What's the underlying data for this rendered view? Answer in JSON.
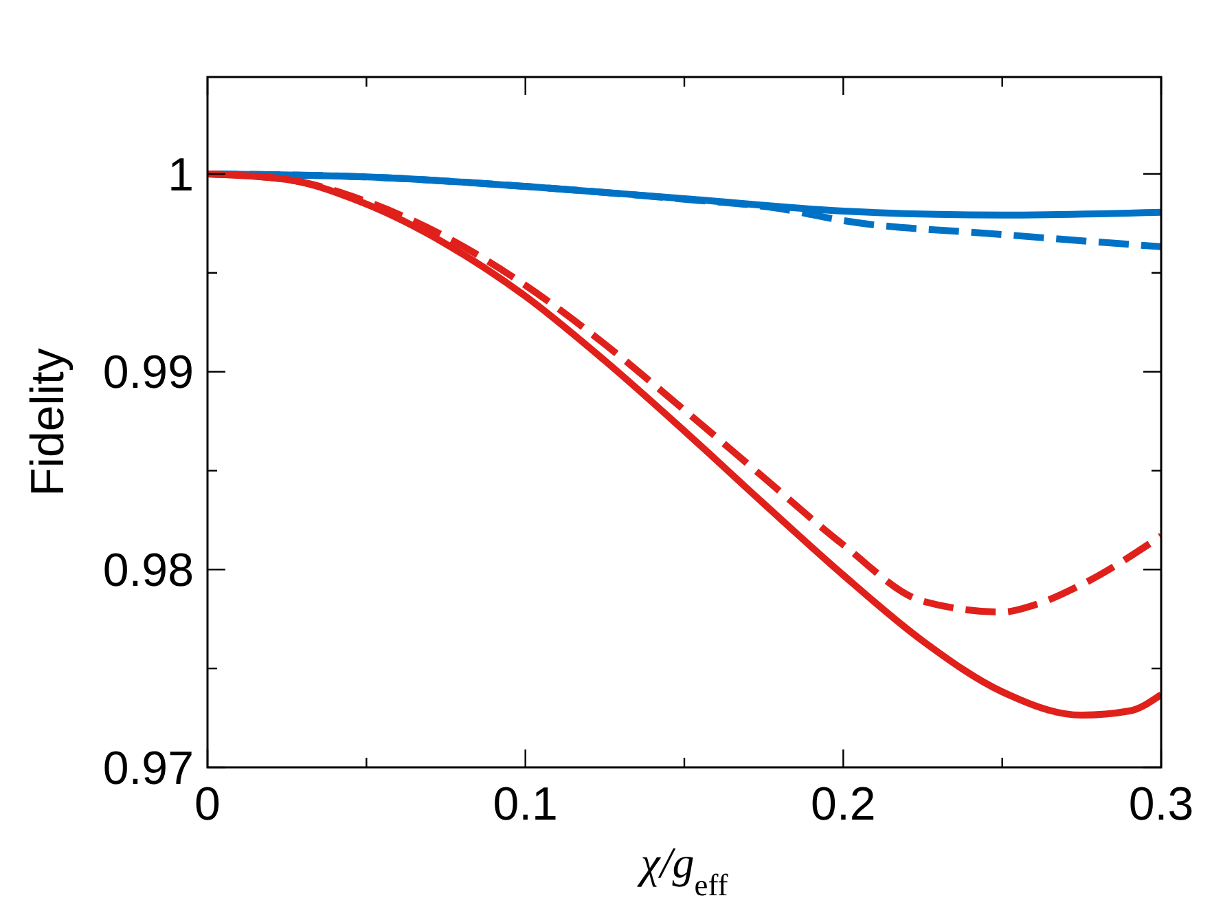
{
  "chart_data": {
    "type": "line",
    "xlabel": "χ/g$_{eff}$",
    "ylabel": "Fidelity",
    "xlim": [
      0,
      0.3
    ],
    "ylim": [
      0.97,
      1.0049
    ],
    "xticks": [
      0,
      {
        "value": 0.05,
        "label": null
      },
      0.1,
      {
        "value": 0.15,
        "label": null
      },
      0.2,
      {
        "value": 0.25,
        "label": null
      },
      0.3
    ],
    "yticks": [
      0.97,
      {
        "value": 0.975,
        "label": null
      },
      0.98,
      {
        "value": 0.985,
        "label": null
      },
      0.99,
      {
        "value": 0.995,
        "label": null
      },
      1
    ],
    "grid": false,
    "marker": "none",
    "series": [
      {
        "color": "#0072c6",
        "line_style": "solid",
        "x": [
          0,
          0.05,
          0.1,
          0.15,
          0.2,
          0.25,
          0.3
        ],
        "values": [
          1,
          0.99985,
          0.99937,
          0.99875,
          0.99812,
          0.99792,
          0.99806
        ]
      },
      {
        "color": "#0072c6",
        "line_style": "dashed",
        "x": [
          0,
          0.05,
          0.1,
          0.15,
          0.18,
          0.2,
          0.25,
          0.3
        ],
        "values": [
          1,
          0.99985,
          0.99937,
          0.99872,
          0.99825,
          0.99764,
          0.99694,
          0.99632
        ]
      },
      {
        "color": "#e0201b",
        "line_style": "solid",
        "x": [
          0,
          0.025,
          0.05,
          0.075,
          0.1,
          0.125,
          0.15,
          0.175,
          0.2,
          0.225,
          0.25,
          0.275,
          0.29,
          0.3
        ],
        "values": [
          1,
          0.99972,
          0.99847,
          0.99646,
          0.99382,
          0.99056,
          0.98701,
          0.98333,
          0.97972,
          0.97639,
          0.97382,
          0.97264,
          0.97285,
          0.97368
        ]
      },
      {
        "color": "#e0201b",
        "line_style": "dashed",
        "x": [
          0,
          0.025,
          0.05,
          0.075,
          0.1,
          0.125,
          0.15,
          0.175,
          0.2,
          0.225,
          0.25,
          0.26,
          0.275,
          0.3
        ],
        "values": [
          1,
          0.99972,
          0.99861,
          0.99681,
          0.99437,
          0.99139,
          0.98806,
          0.98465,
          0.98125,
          0.9784,
          0.97785,
          0.9782,
          0.97924,
          0.9817
        ]
      }
    ]
  }
}
